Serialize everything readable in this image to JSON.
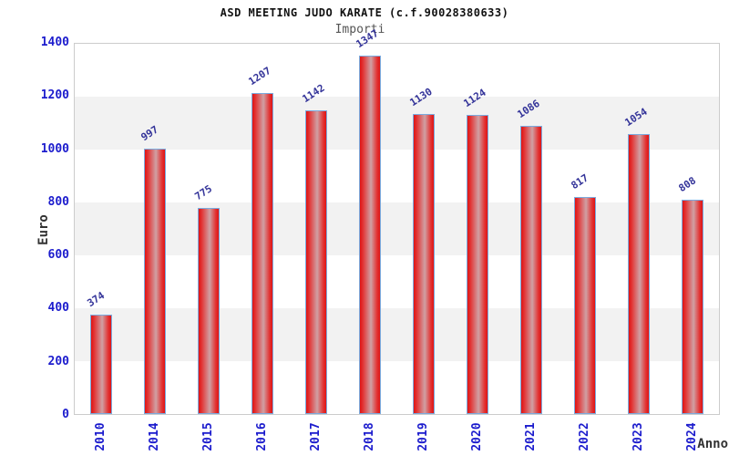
{
  "title": "ASD MEETING JUDO KARATE (c.f.90028380633)",
  "subtitle": "Importi",
  "chart_data": {
    "type": "bar",
    "title": "ASD MEETING JUDO KARATE (c.f.90028380633)",
    "subtitle": "Importi",
    "xlabel": "Anno",
    "ylabel": "Euro",
    "categories": [
      "2010",
      "2014",
      "2015",
      "2016",
      "2017",
      "2018",
      "2019",
      "2020",
      "2021",
      "2022",
      "2023",
      "2024"
    ],
    "values": [
      374,
      997,
      775,
      1207,
      1142,
      1347,
      1130,
      1124,
      1086,
      817,
      1054,
      808
    ],
    "ylim": [
      0,
      1400
    ],
    "yticks": [
      0,
      200,
      400,
      600,
      800,
      1000,
      1200,
      1400
    ],
    "grid": "alternating-horizontal-bands",
    "legend_position": "none",
    "value_labels": "above-bars-rotated"
  },
  "colors": {
    "tick_label": "#1c1ccd",
    "value_label": "#333399",
    "bar_red": "#df1414",
    "bar_red_mid": "#e23434",
    "bar_highlight": "#d0a0a4",
    "bar_border": "#7aabdf",
    "band_gray": "#f2f2f2",
    "band_white": "#ffffff",
    "plot_border": "#cccccc",
    "title_color": "#111111",
    "subtitle_color": "#555555",
    "axis_label_color": "#333333"
  }
}
